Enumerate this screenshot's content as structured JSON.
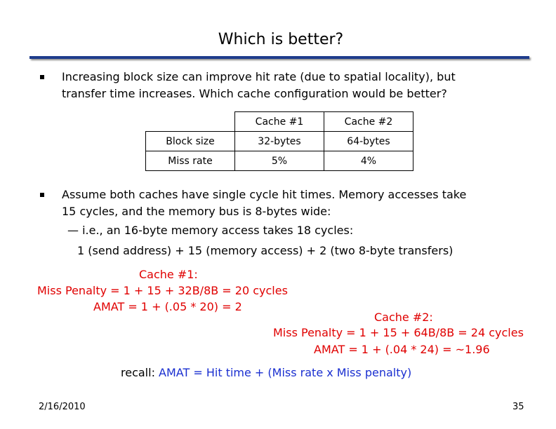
{
  "title": "Which is better?",
  "bullet1": {
    "line1": "Increasing block size can improve hit rate (due to spatial locality), but",
    "line2": "transfer time increases. Which cache configuration would be better?"
  },
  "table": {
    "headers": [
      "",
      "Cache #1",
      "Cache #2"
    ],
    "rows": [
      [
        "Block size",
        "32-bytes",
        "64-bytes"
      ],
      [
        "Miss rate",
        "5%",
        "4%"
      ]
    ]
  },
  "bullet2": {
    "line1": "Assume both caches have single cycle hit times.  Memory accesses take",
    "line2": "15 cycles, and the memory bus is 8-bytes wide:"
  },
  "subbullet": "— i.e., an 16-byte memory access takes 18 cycles:",
  "subline": "1 (send address) + 15 (memory access) + 2 (two 8-byte transfers)",
  "cache1": {
    "label": "Cache #1:",
    "penalty": "Miss Penalty = 1 + 15 + 32B/8B = 20 cycles",
    "amat": "AMAT = 1 + (.05 * 20) = 2"
  },
  "cache2": {
    "label": "Cache #2:",
    "penalty": "Miss Penalty = 1 + 15 + 64B/8B = 24 cycles",
    "amat": "AMAT = 1 + (.04 * 24) = ~1.96"
  },
  "recall": {
    "prefix": "recall: ",
    "formula": "AMAT = Hit time + (Miss rate x Miss penalty)"
  },
  "footer": {
    "date": "2/16/2010",
    "page": "35"
  },
  "colors": {
    "rule": "#1e3c8c",
    "red": "#e00000",
    "blue": "#1a2fd0"
  }
}
